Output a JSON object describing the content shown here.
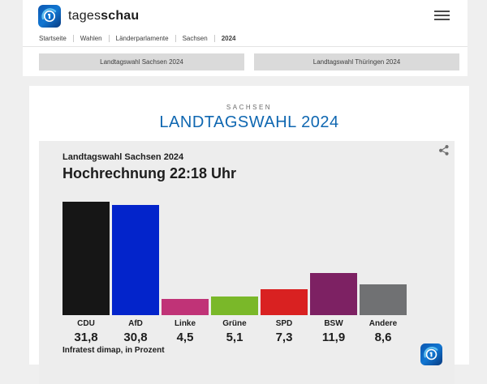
{
  "header": {
    "brand_regular": "tages",
    "brand_bold": "schau"
  },
  "breadcrumb": {
    "items": [
      "Startseite",
      "Wahlen",
      "Länderparlamente",
      "Sachsen",
      "2024"
    ]
  },
  "tabs": [
    {
      "label": "Landtagswahl Sachsen 2024"
    },
    {
      "label": "Landtagswahl Thüringen 2024"
    }
  ],
  "page": {
    "kicker": "SACHSEN",
    "title": "LANDTAGSWAHL 2024"
  },
  "chart_data": {
    "type": "bar",
    "title": "Landtagswahl Sachsen 2024",
    "subtitle": "Hochrechnung 22:18 Uhr",
    "source": "Infratest dimap, in Prozent",
    "categories": [
      "CDU",
      "AfD",
      "Linke",
      "Grüne",
      "SPD",
      "BSW",
      "Andere"
    ],
    "values": [
      31.8,
      30.8,
      4.5,
      5.1,
      7.3,
      11.9,
      8.6
    ],
    "value_labels": [
      "31,8",
      "30,8",
      "4,5",
      "5,1",
      "7,3",
      "11,9",
      "8,6"
    ],
    "colors": [
      "#161616",
      "#0324cb",
      "#c03377",
      "#7ab829",
      "#d92121",
      "#7d2163",
      "#707173"
    ],
    "ylim": [
      0,
      35
    ],
    "grid": false,
    "legend": false
  },
  "colors": {
    "accent_blue": "#0f67b1",
    "card_bg": "#ededed",
    "tab_bg": "#dadada"
  },
  "icons": {
    "brand_logo": "tagesschau-globe-icon",
    "menu": "hamburger-menu-icon",
    "share": "share-icon"
  }
}
